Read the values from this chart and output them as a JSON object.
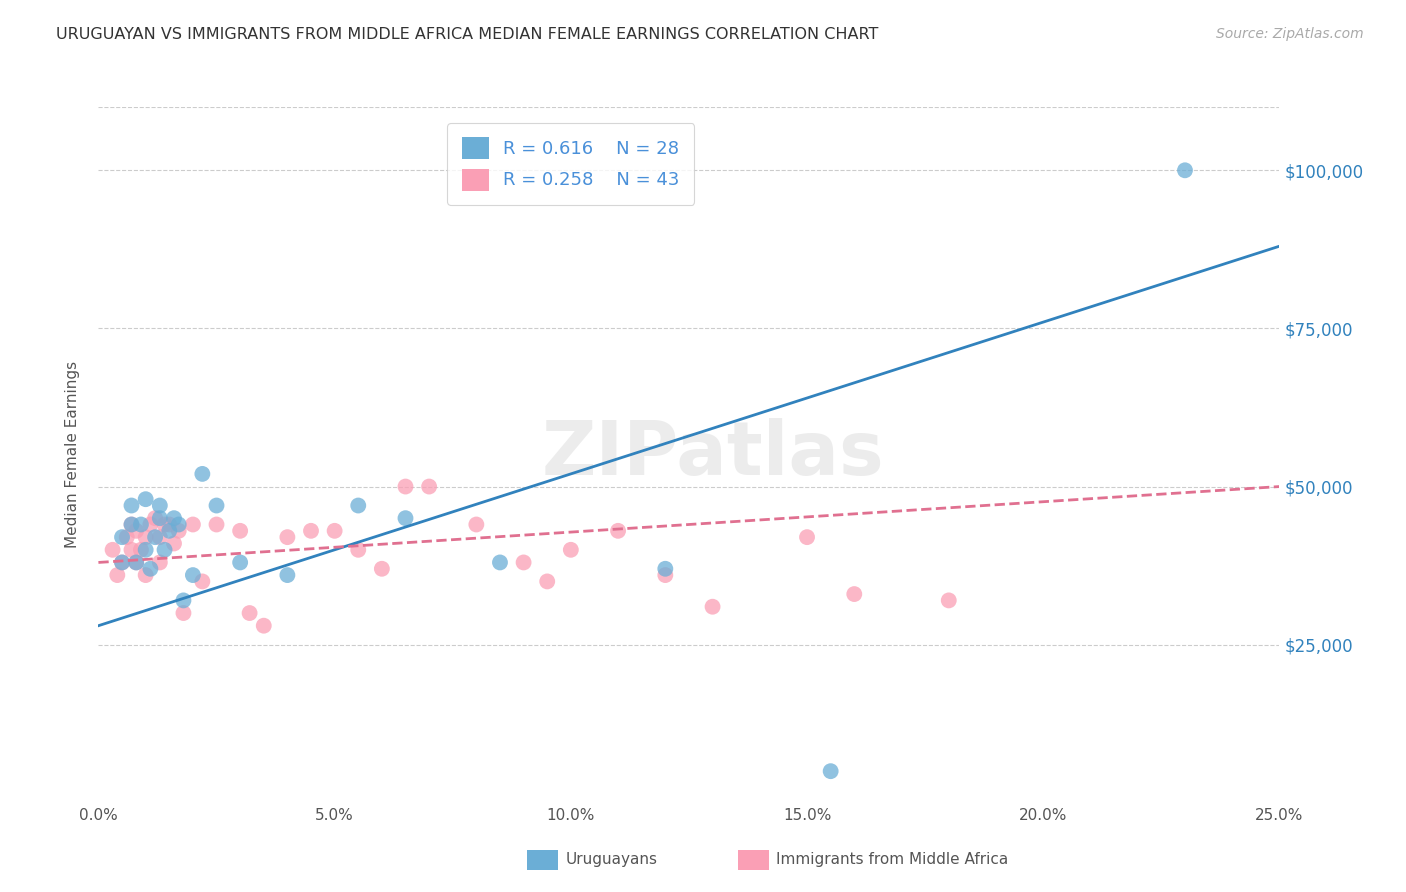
{
  "title": "URUGUAYAN VS IMMIGRANTS FROM MIDDLE AFRICA MEDIAN FEMALE EARNINGS CORRELATION CHART",
  "source": "Source: ZipAtlas.com",
  "ylabel": "Median Female Earnings",
  "ytick_labels": [
    "$25,000",
    "$50,000",
    "$75,000",
    "$100,000"
  ],
  "ytick_values": [
    25000,
    50000,
    75000,
    100000
  ],
  "ylim": [
    0,
    110000
  ],
  "xlim": [
    0,
    0.25
  ],
  "xtick_positions": [
    0.0,
    0.05,
    0.1,
    0.15,
    0.2,
    0.25
  ],
  "xtick_labels": [
    "0.0%",
    "5.0%",
    "10.0%",
    "15.0%",
    "20.0%",
    "25.0%"
  ],
  "legend_r1": "0.616",
  "legend_n1": "28",
  "legend_r2": "0.258",
  "legend_n2": "43",
  "color_blue": "#6baed6",
  "color_pink": "#fa9fb5",
  "color_blue_line": "#3182bd",
  "color_pink_line": "#e07090",
  "watermark": "ZIPatlas",
  "blue_points": [
    [
      0.005,
      38000
    ],
    [
      0.005,
      42000
    ],
    [
      0.007,
      44000
    ],
    [
      0.007,
      47000
    ],
    [
      0.008,
      38000
    ],
    [
      0.009,
      44000
    ],
    [
      0.01,
      40000
    ],
    [
      0.01,
      48000
    ],
    [
      0.011,
      37000
    ],
    [
      0.012,
      42000
    ],
    [
      0.013,
      45000
    ],
    [
      0.013,
      47000
    ],
    [
      0.014,
      40000
    ],
    [
      0.015,
      43000
    ],
    [
      0.016,
      45000
    ],
    [
      0.017,
      44000
    ],
    [
      0.018,
      32000
    ],
    [
      0.02,
      36000
    ],
    [
      0.022,
      52000
    ],
    [
      0.025,
      47000
    ],
    [
      0.03,
      38000
    ],
    [
      0.04,
      36000
    ],
    [
      0.055,
      47000
    ],
    [
      0.065,
      45000
    ],
    [
      0.085,
      38000
    ],
    [
      0.12,
      37000
    ],
    [
      0.155,
      5000
    ],
    [
      0.23,
      100000
    ]
  ],
  "pink_points": [
    [
      0.003,
      40000
    ],
    [
      0.004,
      36000
    ],
    [
      0.005,
      38000
    ],
    [
      0.006,
      42000
    ],
    [
      0.007,
      44000
    ],
    [
      0.007,
      40000
    ],
    [
      0.008,
      38000
    ],
    [
      0.008,
      43000
    ],
    [
      0.009,
      40000
    ],
    [
      0.01,
      36000
    ],
    [
      0.01,
      42000
    ],
    [
      0.011,
      44000
    ],
    [
      0.012,
      45000
    ],
    [
      0.013,
      42000
    ],
    [
      0.013,
      38000
    ],
    [
      0.014,
      44000
    ],
    [
      0.015,
      44000
    ],
    [
      0.016,
      41000
    ],
    [
      0.017,
      43000
    ],
    [
      0.018,
      30000
    ],
    [
      0.02,
      44000
    ],
    [
      0.022,
      35000
    ],
    [
      0.025,
      44000
    ],
    [
      0.03,
      43000
    ],
    [
      0.032,
      30000
    ],
    [
      0.035,
      28000
    ],
    [
      0.04,
      42000
    ],
    [
      0.045,
      43000
    ],
    [
      0.05,
      43000
    ],
    [
      0.055,
      40000
    ],
    [
      0.06,
      37000
    ],
    [
      0.065,
      50000
    ],
    [
      0.07,
      50000
    ],
    [
      0.08,
      44000
    ],
    [
      0.09,
      38000
    ],
    [
      0.095,
      35000
    ],
    [
      0.1,
      40000
    ],
    [
      0.11,
      43000
    ],
    [
      0.12,
      36000
    ],
    [
      0.13,
      31000
    ],
    [
      0.15,
      42000
    ],
    [
      0.16,
      33000
    ],
    [
      0.18,
      32000
    ]
  ],
  "blue_line_x": [
    0.0,
    0.25
  ],
  "blue_line_y": [
    28000,
    88000
  ],
  "pink_line_x": [
    0.0,
    0.25
  ],
  "pink_line_y": [
    38000,
    50000
  ]
}
